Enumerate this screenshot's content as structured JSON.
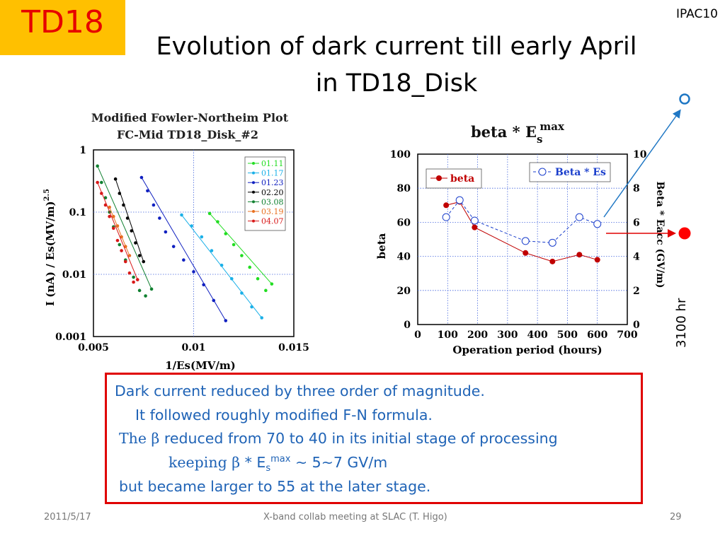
{
  "slide": {
    "badge": "TD18",
    "conference": "IPAC10",
    "title_line1": "Evolution of dark current till early April",
    "title_line2": "in TD18_Disk",
    "side_label": "3100 hr",
    "note": {
      "line1": "Dark current reduced by three order of magnitude.",
      "line2": "It followed roughly modified F-N formula.",
      "line3_a": "The ",
      "line3_beta": "β",
      "line3_b": " reduced from 70 to 40 in its initial stage of processing",
      "line4_a": "keeping  ",
      "line4_beta": "β",
      "line4_b": " * E",
      "line4_sub": "s",
      "line4_sup": "max",
      "line4_c": " ~ 5~7 GV/m",
      "line5": "but became larger to 55 at the later stage."
    },
    "footer": {
      "date": "2011/5/17",
      "center": "X-band collab meeting at SLAC (T. Higo)",
      "page": "29"
    }
  },
  "chart_data": [
    {
      "type": "scatter",
      "title": "Modified Fowler-Northeim Plot",
      "subtitle": "FC-Mid  TD18_Disk_#2",
      "xlabel": "1/Es(MV/m)",
      "ylabel": "I (nA) / Es(MV/m)",
      "ylabel_exp": "2.5",
      "xlim": [
        0.005,
        0.015
      ],
      "ylim": [
        0.001,
        1
      ],
      "y_scale": "log",
      "grid": true,
      "legend": "top-right",
      "xticks": [
        "0.005",
        "0.01",
        "0.015"
      ],
      "yticks": [
        "1",
        "0.1",
        "0.01",
        "0.001"
      ],
      "series": [
        {
          "name": "01.11",
          "color": "#22dd22",
          "points": [
            [
              0.0108,
              0.095
            ],
            [
              0.0112,
              0.07
            ],
            [
              0.0116,
              0.045
            ],
            [
              0.012,
              0.03
            ],
            [
              0.0124,
              0.02
            ],
            [
              0.0128,
              0.013
            ],
            [
              0.0132,
              0.0085
            ],
            [
              0.0136,
              0.0055
            ],
            [
              0.0139,
              0.007
            ]
          ]
        },
        {
          "name": "01.17",
          "color": "#1ab0e8",
          "points": [
            [
              0.0094,
              0.09
            ],
            [
              0.0099,
              0.06
            ],
            [
              0.0104,
              0.04
            ],
            [
              0.0109,
              0.024
            ],
            [
              0.0114,
              0.014
            ],
            [
              0.0119,
              0.0085
            ],
            [
              0.0124,
              0.005
            ],
            [
              0.0129,
              0.003
            ],
            [
              0.0134,
              0.002
            ]
          ]
        },
        {
          "name": "01.23",
          "color": "#1020c0",
          "points": [
            [
              0.0074,
              0.36
            ],
            [
              0.0077,
              0.22
            ],
            [
              0.008,
              0.13
            ],
            [
              0.0083,
              0.08
            ],
            [
              0.0086,
              0.048
            ],
            [
              0.009,
              0.028
            ],
            [
              0.0095,
              0.017
            ],
            [
              0.01,
              0.011
            ],
            [
              0.0105,
              0.0068
            ],
            [
              0.011,
              0.0038
            ],
            [
              0.0116,
              0.0018
            ]
          ]
        },
        {
          "name": "02.20",
          "color": "#000000",
          "points": [
            [
              0.0061,
              0.34
            ],
            [
              0.0063,
              0.2
            ],
            [
              0.0065,
              0.13
            ],
            [
              0.0067,
              0.08
            ],
            [
              0.0069,
              0.05
            ],
            [
              0.0071,
              0.032
            ],
            [
              0.0073,
              0.02
            ],
            [
              0.0075,
              0.016
            ]
          ]
        },
        {
          "name": "03.08",
          "color": "#108030",
          "points": [
            [
              0.0052,
              0.55
            ],
            [
              0.0054,
              0.3
            ],
            [
              0.0056,
              0.17
            ],
            [
              0.0058,
              0.1
            ],
            [
              0.006,
              0.058
            ],
            [
              0.0063,
              0.03
            ],
            [
              0.0066,
              0.017
            ],
            [
              0.007,
              0.009
            ],
            [
              0.0073,
              0.0055
            ],
            [
              0.0076,
              0.0045
            ],
            [
              0.0079,
              0.0058
            ]
          ]
        },
        {
          "name": "03.19",
          "color": "#e87020",
          "points": [
            [
              0.0058,
              0.12
            ],
            [
              0.006,
              0.085
            ],
            [
              0.0062,
              0.06
            ],
            [
              0.0064,
              0.04
            ],
            [
              0.0066,
              0.028
            ],
            [
              0.0068,
              0.02
            ]
          ]
        },
        {
          "name": "04.07",
          "color": "#d81818",
          "points": [
            [
              0.0052,
              0.3
            ],
            [
              0.0054,
              0.2
            ],
            [
              0.0056,
              0.13
            ],
            [
              0.0058,
              0.085
            ],
            [
              0.006,
              0.055
            ],
            [
              0.0062,
              0.035
            ],
            [
              0.0064,
              0.024
            ],
            [
              0.0066,
              0.016
            ],
            [
              0.0068,
              0.0105
            ],
            [
              0.007,
              0.0075
            ],
            [
              0.0072,
              0.0082
            ]
          ]
        }
      ]
    },
    {
      "type": "line",
      "title": "beta  *  E",
      "title_sub": "s",
      "title_sup": "max",
      "xlabel": "Operation period (hours)",
      "ylabel": "beta",
      "y2label": "Beta * Eacc  (GV/m)",
      "xlim": [
        0,
        700
      ],
      "ylim": [
        0,
        100
      ],
      "y2lim": [
        0,
        10
      ],
      "grid": true,
      "xticks": [
        "0",
        "100",
        "200",
        "300",
        "400",
        "500",
        "600",
        "700"
      ],
      "yticks": [
        "0",
        "20",
        "40",
        "60",
        "80",
        "100"
      ],
      "y2ticks": [
        "0",
        "2",
        "4",
        "6",
        "8",
        "10"
      ],
      "series": [
        {
          "name": "beta",
          "axis": "left",
          "style": "solid",
          "color": "#c00000",
          "x": [
            95,
            140,
            190,
            360,
            450,
            540,
            600
          ],
          "y": [
            70,
            72,
            57,
            42,
            37,
            41,
            38
          ]
        },
        {
          "name": "Beta * Es",
          "axis": "right",
          "style": "dashed",
          "color": "#1a3ecc",
          "x": [
            95,
            140,
            190,
            360,
            450,
            540,
            600
          ],
          "y": [
            6.3,
            7.3,
            6.1,
            4.9,
            4.8,
            6.3,
            5.9
          ]
        }
      ]
    }
  ]
}
